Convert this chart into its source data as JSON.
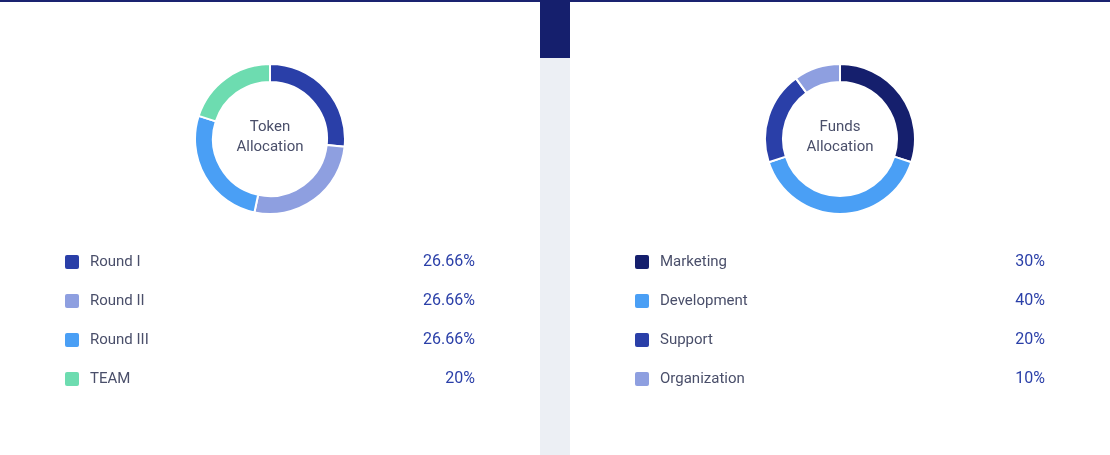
{
  "chart_data": [
    {
      "type": "donut",
      "title": "Token Allocation",
      "categories": [
        "Round I",
        "Round II",
        "Round III",
        "TEAM"
      ],
      "values": [
        26.66,
        26.66,
        26.66,
        20
      ],
      "value_labels": [
        "26.66%",
        "26.66%",
        "26.66%",
        "20%"
      ],
      "colors": [
        "#2a3fa8",
        "#8e9fe0",
        "#4a9ff5",
        "#6ddcb0"
      ],
      "legend": "bottom"
    },
    {
      "type": "donut",
      "title": "Funds Allocation",
      "categories": [
        "Marketing",
        "Development",
        "Support",
        "Organization"
      ],
      "values": [
        30,
        40,
        20,
        10
      ],
      "value_labels": [
        "30%",
        "40%",
        "20%",
        "10%"
      ],
      "colors": [
        "#151f6d",
        "#4a9ff5",
        "#2a3fa8",
        "#8e9fe0"
      ],
      "legend": "bottom"
    }
  ]
}
